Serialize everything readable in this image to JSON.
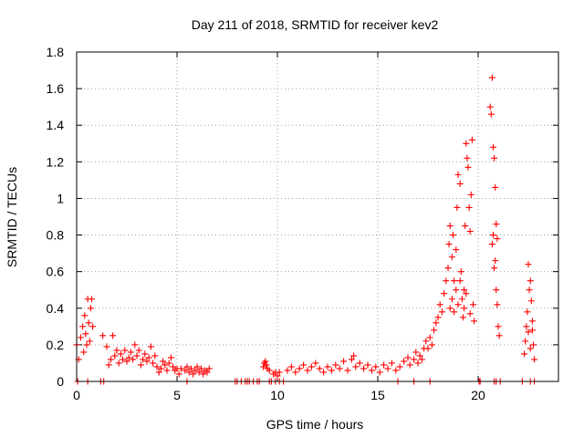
{
  "chart_data": {
    "type": "scatter",
    "title": "Day 211 of 2018, SRMTID for receiver kev2",
    "xlabel": "GPS time / hours",
    "ylabel": "SRMTID / TECUs",
    "xlim": [
      0,
      24
    ],
    "ylim": [
      0,
      1.8
    ],
    "xticks": [
      0,
      5,
      10,
      15,
      20
    ],
    "xtick_labels": [
      "0",
      "5",
      "10",
      "15",
      "20"
    ],
    "yticks": [
      0,
      0.2,
      0.4,
      0.6,
      0.8,
      1.0,
      1.2,
      1.4,
      1.6,
      1.8
    ],
    "ytick_labels": [
      "0",
      "0.2",
      "0.4",
      "0.6",
      "0.8",
      "1",
      "1.2",
      "1.4",
      "1.6",
      "1.8"
    ],
    "grid": true,
    "marker": "plus",
    "marker_color": "#ff0000",
    "series": [
      {
        "name": "SRMTID",
        "points": [
          [
            0.0,
            0.2
          ],
          [
            0.1,
            0.12
          ],
          [
            0.2,
            0.24
          ],
          [
            0.3,
            0.3
          ],
          [
            0.35,
            0.16
          ],
          [
            0.4,
            0.36
          ],
          [
            0.45,
            0.26
          ],
          [
            0.5,
            0.2
          ],
          [
            0.55,
            0.45
          ],
          [
            0.6,
            0.32
          ],
          [
            0.65,
            0.22
          ],
          [
            0.7,
            0.4
          ],
          [
            0.75,
            0.45
          ],
          [
            0.8,
            0.3
          ],
          [
            0.05,
            0.0
          ],
          [
            0.55,
            0.0
          ],
          [
            1.2,
            0.0
          ],
          [
            1.35,
            0.0
          ],
          [
            1.3,
            0.25
          ],
          [
            1.5,
            0.19
          ],
          [
            1.6,
            0.09
          ],
          [
            1.7,
            0.12
          ],
          [
            1.8,
            0.25
          ],
          [
            1.9,
            0.14
          ],
          [
            2.0,
            0.17
          ],
          [
            2.1,
            0.1
          ],
          [
            2.2,
            0.15
          ],
          [
            2.3,
            0.12
          ],
          [
            2.4,
            0.17
          ],
          [
            2.5,
            0.11
          ],
          [
            2.6,
            0.13
          ],
          [
            2.7,
            0.16
          ],
          [
            2.8,
            0.12
          ],
          [
            2.9,
            0.2
          ],
          [
            3.0,
            0.14
          ],
          [
            3.1,
            0.17
          ],
          [
            3.2,
            0.09
          ],
          [
            3.3,
            0.12
          ],
          [
            3.4,
            0.15
          ],
          [
            3.5,
            0.11
          ],
          [
            3.6,
            0.13
          ],
          [
            3.7,
            0.19
          ],
          [
            3.8,
            0.1
          ],
          [
            3.9,
            0.14
          ],
          [
            4.0,
            0.08
          ],
          [
            4.1,
            0.05
          ],
          [
            4.2,
            0.07
          ],
          [
            4.3,
            0.11
          ],
          [
            4.4,
            0.09
          ],
          [
            4.5,
            0.06
          ],
          [
            4.6,
            0.1
          ],
          [
            4.7,
            0.13
          ],
          [
            4.8,
            0.08
          ],
          [
            4.9,
            0.06
          ],
          [
            5.0,
            0.07
          ],
          [
            5.1,
            0.04
          ],
          [
            5.2,
            0.07
          ],
          [
            5.4,
            0.06
          ],
          [
            5.5,
            0.08
          ],
          [
            5.6,
            0.05
          ],
          [
            5.7,
            0.07
          ],
          [
            5.8,
            0.04
          ],
          [
            5.9,
            0.06
          ],
          [
            6.0,
            0.08
          ],
          [
            6.1,
            0.05
          ],
          [
            6.2,
            0.07
          ],
          [
            6.3,
            0.04
          ],
          [
            6.4,
            0.06
          ],
          [
            6.5,
            0.05
          ],
          [
            6.6,
            0.07
          ],
          [
            5.5,
            0.0
          ],
          [
            7.9,
            0.0
          ],
          [
            8.0,
            0.0
          ],
          [
            8.2,
            0.0
          ],
          [
            8.4,
            0.0
          ],
          [
            8.5,
            0.0
          ],
          [
            8.6,
            0.0
          ],
          [
            8.8,
            0.0
          ],
          [
            9.0,
            0.0
          ],
          [
            9.1,
            0.0
          ],
          [
            9.6,
            0.0
          ],
          [
            9.7,
            0.0
          ],
          [
            9.9,
            0.0
          ],
          [
            10.1,
            0.0
          ],
          [
            10.3,
            0.0
          ],
          [
            9.3,
            0.08
          ],
          [
            9.35,
            0.1
          ],
          [
            9.4,
            0.11
          ],
          [
            9.45,
            0.09
          ],
          [
            9.5,
            0.07
          ],
          [
            9.6,
            0.06
          ],
          [
            9.8,
            0.04
          ],
          [
            9.9,
            0.05
          ],
          [
            10.0,
            0.03
          ],
          [
            10.1,
            0.05
          ],
          [
            10.5,
            0.06
          ],
          [
            10.7,
            0.08
          ],
          [
            10.9,
            0.05
          ],
          [
            11.1,
            0.07
          ],
          [
            11.3,
            0.09
          ],
          [
            11.5,
            0.06
          ],
          [
            11.7,
            0.08
          ],
          [
            11.9,
            0.1
          ],
          [
            12.1,
            0.07
          ],
          [
            12.3,
            0.05
          ],
          [
            12.5,
            0.08
          ],
          [
            12.7,
            0.06
          ],
          [
            12.9,
            0.09
          ],
          [
            13.1,
            0.07
          ],
          [
            13.3,
            0.11
          ],
          [
            13.5,
            0.06
          ],
          [
            13.7,
            0.12
          ],
          [
            13.8,
            0.14
          ],
          [
            13.9,
            0.08
          ],
          [
            14.1,
            0.1
          ],
          [
            14.3,
            0.07
          ],
          [
            14.5,
            0.09
          ],
          [
            14.7,
            0.06
          ],
          [
            14.9,
            0.08
          ],
          [
            15.1,
            0.05
          ],
          [
            15.3,
            0.09
          ],
          [
            15.5,
            0.07
          ],
          [
            15.7,
            0.1
          ],
          [
            15.9,
            0.06
          ],
          [
            16.1,
            0.08
          ],
          [
            16.3,
            0.11
          ],
          [
            16.5,
            0.13
          ],
          [
            16.6,
            0.09
          ],
          [
            16.8,
            0.12
          ],
          [
            16.9,
            0.16
          ],
          [
            17.0,
            0.1
          ],
          [
            17.1,
            0.14
          ],
          [
            17.2,
            0.12
          ],
          [
            17.3,
            0.18
          ],
          [
            17.4,
            0.22
          ],
          [
            17.5,
            0.18
          ],
          [
            17.6,
            0.24
          ],
          [
            17.7,
            0.2
          ],
          [
            16.0,
            0.0
          ],
          [
            16.8,
            0.0
          ],
          [
            17.6,
            0.0
          ],
          [
            17.8,
            0.28
          ],
          [
            17.9,
            0.32
          ],
          [
            18.0,
            0.35
          ],
          [
            18.1,
            0.42
          ],
          [
            18.2,
            0.38
          ],
          [
            18.3,
            0.48
          ],
          [
            18.4,
            0.55
          ],
          [
            18.5,
            0.62
          ],
          [
            18.55,
            0.75
          ],
          [
            18.6,
            0.85
          ],
          [
            18.7,
            0.68
          ],
          [
            18.75,
            0.8
          ],
          [
            18.8,
            0.55
          ],
          [
            18.9,
            0.72
          ],
          [
            18.95,
            0.95
          ],
          [
            19.0,
            1.13
          ],
          [
            19.1,
            1.08
          ],
          [
            19.15,
            0.6
          ],
          [
            19.2,
            0.45
          ],
          [
            19.25,
            0.35
          ],
          [
            19.3,
            0.5
          ],
          [
            19.35,
            0.85
          ],
          [
            19.4,
            1.3
          ],
          [
            19.45,
            1.22
          ],
          [
            19.5,
            1.17
          ],
          [
            19.55,
            0.95
          ],
          [
            19.6,
            0.82
          ],
          [
            19.65,
            1.02
          ],
          [
            19.7,
            1.32
          ],
          [
            19.75,
            0.42
          ],
          [
            19.8,
            0.33
          ],
          [
            18.6,
            0.4
          ],
          [
            18.7,
            0.45
          ],
          [
            18.8,
            0.38
          ],
          [
            18.9,
            0.5
          ],
          [
            19.0,
            0.42
          ],
          [
            19.1,
            0.55
          ],
          [
            19.3,
            0.4
          ],
          [
            19.4,
            0.48
          ],
          [
            19.6,
            0.37
          ],
          [
            20.05,
            0.0
          ],
          [
            20.1,
            0.0
          ],
          [
            20.6,
            1.5
          ],
          [
            20.65,
            1.46
          ],
          [
            20.7,
            1.66
          ],
          [
            20.75,
            1.28
          ],
          [
            20.8,
            1.22
          ],
          [
            20.85,
            1.06
          ],
          [
            20.9,
            0.86
          ],
          [
            20.95,
            0.78
          ],
          [
            20.7,
            0.75
          ],
          [
            20.8,
            0.62
          ],
          [
            20.9,
            0.5
          ],
          [
            20.95,
            0.42
          ],
          [
            21.0,
            0.3
          ],
          [
            21.05,
            0.25
          ],
          [
            20.85,
            0.66
          ],
          [
            20.75,
            0.8
          ],
          [
            20.8,
            0.0
          ],
          [
            20.9,
            0.0
          ],
          [
            21.1,
            0.0
          ],
          [
            22.3,
            0.15
          ],
          [
            22.35,
            0.22
          ],
          [
            22.4,
            0.3
          ],
          [
            22.45,
            0.38
          ],
          [
            22.5,
            0.27
          ],
          [
            22.55,
            0.5
          ],
          [
            22.6,
            0.55
          ],
          [
            22.65,
            0.44
          ],
          [
            22.7,
            0.33
          ],
          [
            22.75,
            0.2
          ],
          [
            22.8,
            0.12
          ],
          [
            22.5,
            0.64
          ],
          [
            22.6,
            0.18
          ],
          [
            22.7,
            0.28
          ],
          [
            22.2,
            0.0
          ],
          [
            22.6,
            0.0
          ],
          [
            22.8,
            0.0
          ]
        ]
      }
    ]
  }
}
